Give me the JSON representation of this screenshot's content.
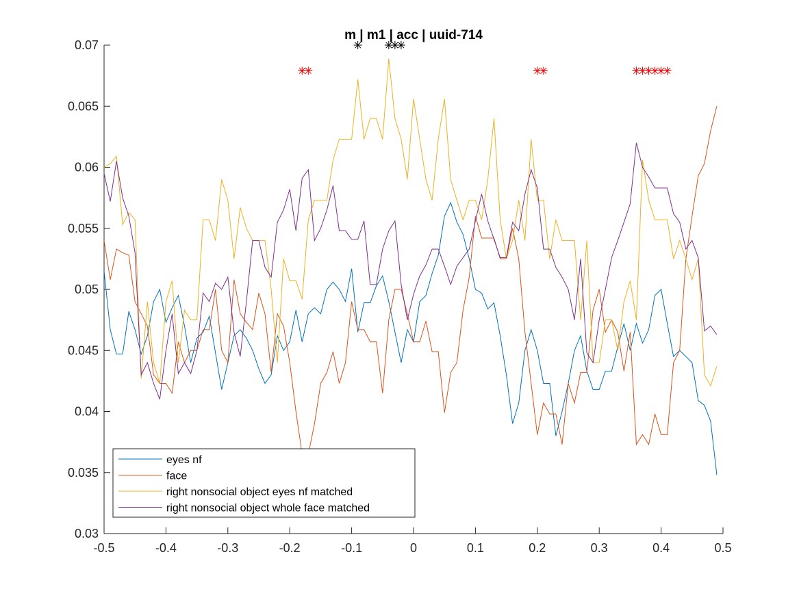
{
  "chart_data": {
    "type": "line",
    "title": "m | m1 | acc | uuid-714",
    "x": [
      -0.5,
      -0.49,
      -0.48,
      -0.47,
      -0.46,
      -0.45,
      -0.44,
      -0.43,
      -0.42,
      -0.41,
      -0.4,
      -0.39,
      -0.38,
      -0.37,
      -0.36,
      -0.35,
      -0.34,
      -0.33,
      -0.32,
      -0.31,
      -0.3,
      -0.29,
      -0.28,
      -0.27,
      -0.26,
      -0.25,
      -0.24,
      -0.23,
      -0.22,
      -0.21,
      -0.2,
      -0.19,
      -0.18,
      -0.17,
      -0.16,
      -0.15,
      -0.14,
      -0.13,
      -0.12,
      -0.11,
      -0.1,
      -0.09,
      -0.08,
      -0.07,
      -0.06,
      -0.05,
      -0.04,
      -0.03,
      -0.02,
      -0.01,
      0,
      0.01,
      0.02,
      0.03,
      0.04,
      0.05,
      0.06,
      0.07,
      0.08,
      0.09,
      0.1,
      0.11,
      0.12,
      0.13,
      0.14,
      0.15,
      0.16,
      0.17,
      0.18,
      0.19,
      0.2,
      0.21,
      0.22,
      0.23,
      0.24,
      0.25,
      0.26,
      0.27,
      0.28,
      0.29,
      0.3,
      0.31,
      0.32,
      0.33,
      0.34,
      0.35,
      0.36,
      0.37,
      0.38,
      0.39,
      0.4,
      0.41,
      0.42,
      0.43,
      0.44,
      0.45,
      0.46,
      0.47,
      0.48,
      0.49
    ],
    "series": [
      {
        "name": "eyes nf",
        "color": "#0072bd",
        "values": [
          0.0515,
          0.0467,
          0.0447,
          0.0447,
          0.0482,
          0.0467,
          0.0447,
          0.0462,
          0.049,
          0.05,
          0.0473,
          0.0485,
          0.0495,
          0.047,
          0.044,
          0.046,
          0.0465,
          0.0478,
          0.0448,
          0.0418,
          0.044,
          0.0462,
          0.0467,
          0.046,
          0.045,
          0.0435,
          0.0423,
          0.043,
          0.0462,
          0.045,
          0.0457,
          0.0483,
          0.0457,
          0.048,
          0.0485,
          0.048,
          0.05,
          0.0506,
          0.05,
          0.049,
          0.0517,
          0.0465,
          0.0489,
          0.0489,
          0.0503,
          0.0511,
          0.049,
          0.0465,
          0.044,
          0.0467,
          0.0457,
          0.049,
          0.0495,
          0.0513,
          0.0528,
          0.056,
          0.0571,
          0.0555,
          0.0545,
          0.0525,
          0.05,
          0.0497,
          0.0484,
          0.0489,
          0.0462,
          0.043,
          0.039,
          0.0407,
          0.045,
          0.0467,
          0.045,
          0.0423,
          0.0423,
          0.038,
          0.04,
          0.0423,
          0.045,
          0.0462,
          0.0433,
          0.0418,
          0.0418,
          0.0433,
          0.0433,
          0.0453,
          0.0472,
          0.045,
          0.0472,
          0.0456,
          0.0467,
          0.0495,
          0.05,
          0.0472,
          0.0445,
          0.045,
          0.0445,
          0.044,
          0.0409,
          0.0405,
          0.0392,
          0.0348
        ]
      },
      {
        "name": "face",
        "color": "#d95319",
        "values": [
          0.054,
          0.0508,
          0.0533,
          0.053,
          0.0528,
          0.049,
          0.048,
          0.047,
          0.043,
          0.0423,
          0.0423,
          0.0415,
          0.0457,
          0.044,
          0.045,
          0.045,
          0.0467,
          0.0467,
          0.05,
          0.045,
          0.044,
          0.0508,
          0.048,
          0.0473,
          0.0467,
          0.0497,
          0.048,
          0.0432,
          0.048,
          0.047,
          0.044,
          0.04,
          0.0365,
          0.0365,
          0.039,
          0.0423,
          0.0432,
          0.0449,
          0.0423,
          0.044,
          0.049,
          0.0467,
          0.0467,
          0.0457,
          0.0457,
          0.0415,
          0.0475,
          0.05,
          0.05,
          0.048,
          0.0457,
          0.0457,
          0.0474,
          0.0449,
          0.0449,
          0.0399,
          0.0432,
          0.044,
          0.0483,
          0.051,
          0.056,
          0.0542,
          0.0542,
          0.0542,
          0.0525,
          0.0525,
          0.055,
          0.0525,
          0.0465,
          0.0423,
          0.0381,
          0.0407,
          0.0398,
          0.0398,
          0.0373,
          0.0423,
          0.0407,
          0.0432,
          0.0432,
          0.0483,
          0.05,
          0.0465,
          0.0475,
          0.0465,
          0.0433,
          0.0465,
          0.0373,
          0.0381,
          0.0373,
          0.0398,
          0.0381,
          0.0381,
          0.044,
          0.045,
          0.0525,
          0.056,
          0.0593,
          0.0603,
          0.063,
          0.065
        ]
      },
      {
        "name": "right nonsocial object eyes nf matched",
        "color": "#edb120",
        "values": [
          0.06,
          0.0603,
          0.0609,
          0.0553,
          0.0563,
          0.0557,
          0.0427,
          0.049,
          0.044,
          0.0423,
          0.049,
          0.0507,
          0.044,
          0.0483,
          0.0475,
          0.0475,
          0.0557,
          0.0557,
          0.054,
          0.059,
          0.0573,
          0.0525,
          0.0567,
          0.055,
          0.054,
          0.054,
          0.054,
          0.05,
          0.044,
          0.0525,
          0.0507,
          0.0507,
          0.0492,
          0.0557,
          0.0573,
          0.0573,
          0.0573,
          0.0606,
          0.0623,
          0.0623,
          0.0623,
          0.0672,
          0.0623,
          0.064,
          0.064,
          0.0623,
          0.0689,
          0.064,
          0.0623,
          0.059,
          0.0656,
          0.0623,
          0.059,
          0.0573,
          0.0623,
          0.0656,
          0.059,
          0.0573,
          0.0557,
          0.0573,
          0.0573,
          0.0557,
          0.059,
          0.064,
          0.0557,
          0.0525,
          0.054,
          0.0573,
          0.054,
          0.0623,
          0.0573,
          0.0573,
          0.0525,
          0.0557,
          0.054,
          0.054,
          0.054,
          0.0475,
          0.054,
          0.044,
          0.044,
          0.0475,
          0.0475,
          0.045,
          0.049,
          0.0507,
          0.0475,
          0.0606,
          0.0573,
          0.0557,
          0.0557,
          0.0557,
          0.0525,
          0.054,
          0.0525,
          0.0508,
          0.0525,
          0.043,
          0.0421,
          0.0437
        ]
      },
      {
        "name": "right nonsocial object whole face matched",
        "color": "#7e2f8e",
        "values": [
          0.0595,
          0.0572,
          0.0605,
          0.0575,
          0.056,
          0.053,
          0.043,
          0.044,
          0.0423,
          0.041,
          0.045,
          0.048,
          0.0431,
          0.044,
          0.0431,
          0.045,
          0.0497,
          0.049,
          0.0505,
          0.05,
          0.051,
          0.0465,
          0.0445,
          0.049,
          0.054,
          0.054,
          0.0518,
          0.051,
          0.0555,
          0.0565,
          0.0582,
          0.0548,
          0.0591,
          0.0598,
          0.054,
          0.055,
          0.0565,
          0.0585,
          0.0548,
          0.0548,
          0.0541,
          0.0541,
          0.0556,
          0.0504,
          0.0504,
          0.0533,
          0.0548,
          0.0556,
          0.0504,
          0.0475,
          0.0496,
          0.0511,
          0.052,
          0.0533,
          0.0533,
          0.0519,
          0.0504,
          0.0519,
          0.0526,
          0.0533,
          0.0556,
          0.0578,
          0.0556,
          0.0541,
          0.0526,
          0.0526,
          0.0555,
          0.0548,
          0.0578,
          0.0598,
          0.0583,
          0.0533,
          0.0533,
          0.0518,
          0.051,
          0.05,
          0.0475,
          0.0525,
          0.0448,
          0.044,
          0.0475,
          0.05,
          0.0526,
          0.054,
          0.0555,
          0.057,
          0.062,
          0.06,
          0.0592,
          0.0583,
          0.0583,
          0.0583,
          0.0562,
          0.0555,
          0.0533,
          0.054,
          0.0526,
          0.0466,
          0.047,
          0.0463
        ]
      }
    ],
    "markers": [
      {
        "color": "#000000",
        "x": [
          -0.09,
          -0.04,
          -0.03,
          -0.02
        ],
        "y": [
          0.07,
          0.07,
          0.07,
          0.07
        ]
      },
      {
        "color": "#ff0000",
        "x": [
          -0.18,
          -0.17,
          0.2,
          0.21,
          0.36,
          0.37,
          0.38,
          0.39,
          0.4,
          0.41
        ],
        "y": [
          0.0679,
          0.0679,
          0.0679,
          0.0679,
          0.0679,
          0.0679,
          0.0679,
          0.0679,
          0.0679,
          0.0679
        ]
      }
    ],
    "xlim": [
      -0.5,
      0.5
    ],
    "xticks": [
      -0.5,
      -0.4,
      -0.3,
      -0.2,
      -0.1,
      0,
      0.1,
      0.2,
      0.3,
      0.4,
      0.5
    ],
    "ylim": [
      0.03,
      0.07
    ],
    "yticks": [
      0.03,
      0.035,
      0.04,
      0.045,
      0.05,
      0.055,
      0.06,
      0.065,
      0.07
    ],
    "legend": "lower left"
  }
}
